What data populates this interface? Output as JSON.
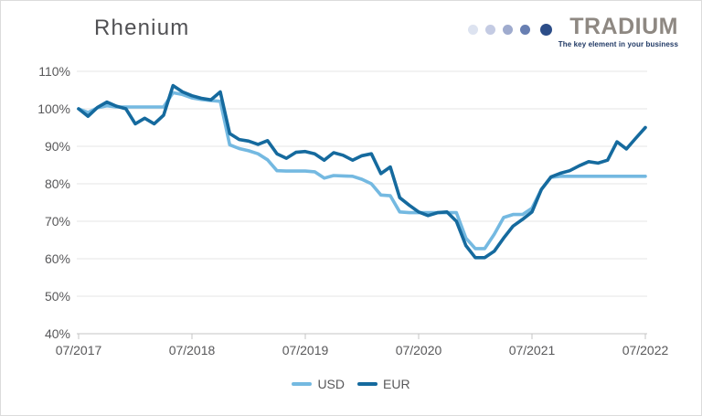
{
  "header": {
    "title": "Rhenium",
    "logo": {
      "brand": "TRADIUM",
      "tagline": "The key element in your business",
      "brand_color": "#8e8882",
      "tagline_color": "#1f3864",
      "dot_colors": [
        "#dde3f0",
        "#c4cbe3",
        "#9fabce",
        "#687fb2",
        "#2c4d88"
      ]
    }
  },
  "chart_data": {
    "type": "line",
    "title": "Rhenium",
    "xlabel": "",
    "ylabel": "",
    "ylim": [
      40,
      110
    ],
    "y_ticks": [
      110,
      100,
      90,
      80,
      70,
      60,
      50,
      40
    ],
    "y_tick_suffix": "%",
    "grid": true,
    "legend_position": "bottom",
    "x_tick_labels": [
      "07/2017",
      "07/2018",
      "07/2019",
      "07/2020",
      "07/2021",
      "07/2022"
    ],
    "x": [
      "07/2017",
      "08/2017",
      "09/2017",
      "10/2017",
      "11/2017",
      "12/2017",
      "01/2018",
      "02/2018",
      "03/2018",
      "04/2018",
      "05/2018",
      "06/2018",
      "07/2018",
      "08/2018",
      "09/2018",
      "10/2018",
      "11/2018",
      "12/2018",
      "01/2019",
      "02/2019",
      "03/2019",
      "04/2019",
      "05/2019",
      "06/2019",
      "07/2019",
      "08/2019",
      "09/2019",
      "10/2019",
      "11/2019",
      "12/2019",
      "01/2020",
      "02/2020",
      "03/2020",
      "04/2020",
      "05/2020",
      "06/2020",
      "07/2020",
      "08/2020",
      "09/2020",
      "10/2020",
      "11/2020",
      "12/2020",
      "01/2021",
      "02/2021",
      "03/2021",
      "04/2021",
      "05/2021",
      "06/2021",
      "07/2021",
      "08/2021",
      "09/2021",
      "10/2021",
      "11/2021",
      "12/2021",
      "01/2022",
      "02/2022",
      "03/2022",
      "04/2022",
      "05/2022",
      "06/2022",
      "07/2022"
    ],
    "series": [
      {
        "name": "USD",
        "color": "#74b9e1",
        "values": [
          100,
          99,
          100.3,
          100.8,
          100.5,
          100.5,
          100.5,
          100.5,
          100.5,
          100.5,
          104.3,
          103.8,
          102.9,
          102.5,
          102.2,
          102,
          90.4,
          89.4,
          88.8,
          88,
          86.4,
          83.5,
          83.4,
          83.4,
          83.4,
          83.2,
          81.5,
          82.2,
          82.1,
          82,
          81.2,
          80,
          77,
          76.8,
          72.5,
          72.3,
          72.3,
          72.3,
          72.3,
          72.3,
          72.3,
          65.5,
          62.7,
          62.7,
          66.5,
          71,
          71.8,
          71.8,
          73.5,
          78.5,
          81.7,
          82,
          82,
          82,
          82,
          82,
          82,
          82,
          82,
          82,
          82
        ]
      },
      {
        "name": "EUR",
        "color": "#156a9e",
        "values": [
          100,
          98,
          100.4,
          101.8,
          100.7,
          100,
          96,
          97.5,
          96,
          98.3,
          106.2,
          104.5,
          103.5,
          102.8,
          102.4,
          104.5,
          93.4,
          91.8,
          91.4,
          90.5,
          91.5,
          88,
          86.8,
          88.4,
          88.6,
          88,
          86.3,
          88.3,
          87.6,
          86.3,
          87.5,
          88,
          82.7,
          84.5,
          76.3,
          74.3,
          72.5,
          71.5,
          72.3,
          72.5,
          70,
          63.5,
          60.3,
          60.3,
          62,
          65.5,
          68.7,
          70.5,
          72.5,
          78.5,
          81.8,
          82.8,
          83.5,
          84.8,
          85.9,
          85.5,
          86.3,
          91.2,
          89.3,
          92.2,
          95
        ]
      }
    ]
  }
}
